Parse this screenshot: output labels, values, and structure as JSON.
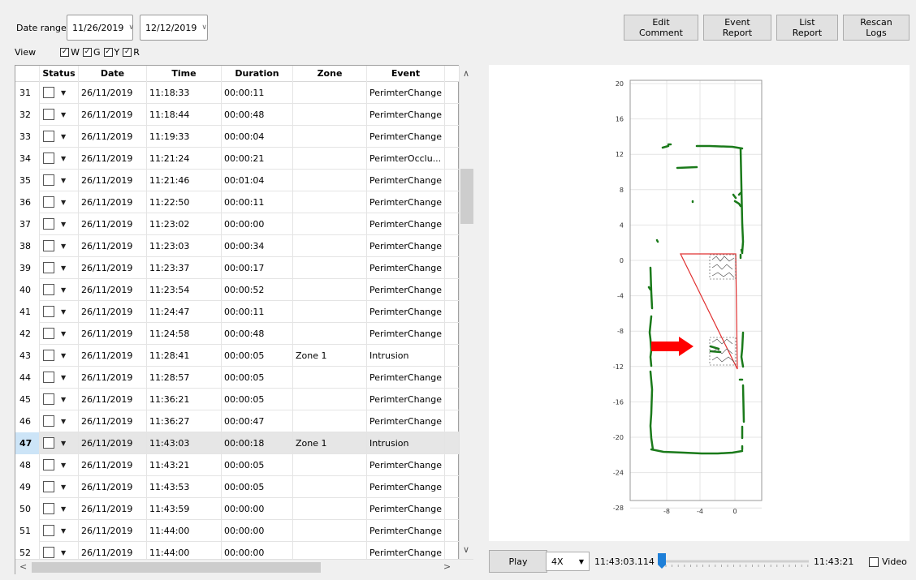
{
  "filters": {
    "date_range_label": "Date range",
    "start_date": "11/26/2019",
    "end_date": "12/12/2019",
    "view_label": "View",
    "view_options": [
      {
        "label": "W",
        "checked": true
      },
      {
        "label": "G",
        "checked": true
      },
      {
        "label": "Y",
        "checked": true
      },
      {
        "label": "R",
        "checked": true
      }
    ]
  },
  "toolbar": {
    "edit_comment": "Edit Comment",
    "event_report": "Event Report",
    "list_report": "List Report",
    "rescan_logs": "Rescan Logs"
  },
  "table": {
    "columns": [
      "Status",
      "Date",
      "Time",
      "Duration",
      "Zone",
      "Event"
    ],
    "selected_row": "47",
    "rows": [
      {
        "n": "31",
        "date": "26/11/2019",
        "time": "11:18:33",
        "duration": "00:00:11",
        "zone": "",
        "event": "PerimterChange"
      },
      {
        "n": "32",
        "date": "26/11/2019",
        "time": "11:18:44",
        "duration": "00:00:48",
        "zone": "",
        "event": "PerimterChange"
      },
      {
        "n": "33",
        "date": "26/11/2019",
        "time": "11:19:33",
        "duration": "00:00:04",
        "zone": "",
        "event": "PerimterChange"
      },
      {
        "n": "34",
        "date": "26/11/2019",
        "time": "11:21:24",
        "duration": "00:00:21",
        "zone": "",
        "event": "PerimterOcclu..."
      },
      {
        "n": "35",
        "date": "26/11/2019",
        "time": "11:21:46",
        "duration": "00:01:04",
        "zone": "",
        "event": "PerimterChange"
      },
      {
        "n": "36",
        "date": "26/11/2019",
        "time": "11:22:50",
        "duration": "00:00:11",
        "zone": "",
        "event": "PerimterChange"
      },
      {
        "n": "37",
        "date": "26/11/2019",
        "time": "11:23:02",
        "duration": "00:00:00",
        "zone": "",
        "event": "PerimterChange"
      },
      {
        "n": "38",
        "date": "26/11/2019",
        "time": "11:23:03",
        "duration": "00:00:34",
        "zone": "",
        "event": "PerimterChange"
      },
      {
        "n": "39",
        "date": "26/11/2019",
        "time": "11:23:37",
        "duration": "00:00:17",
        "zone": "",
        "event": "PerimterChange"
      },
      {
        "n": "40",
        "date": "26/11/2019",
        "time": "11:23:54",
        "duration": "00:00:52",
        "zone": "",
        "event": "PerimterChange"
      },
      {
        "n": "41",
        "date": "26/11/2019",
        "time": "11:24:47",
        "duration": "00:00:11",
        "zone": "",
        "event": "PerimterChange"
      },
      {
        "n": "42",
        "date": "26/11/2019",
        "time": "11:24:58",
        "duration": "00:00:48",
        "zone": "",
        "event": "PerimterChange"
      },
      {
        "n": "43",
        "date": "26/11/2019",
        "time": "11:28:41",
        "duration": "00:00:05",
        "zone": "Zone 1",
        "event": "Intrusion"
      },
      {
        "n": "44",
        "date": "26/11/2019",
        "time": "11:28:57",
        "duration": "00:00:05",
        "zone": "",
        "event": "PerimterChange"
      },
      {
        "n": "45",
        "date": "26/11/2019",
        "time": "11:36:21",
        "duration": "00:00:05",
        "zone": "",
        "event": "PerimterChange"
      },
      {
        "n": "46",
        "date": "26/11/2019",
        "time": "11:36:27",
        "duration": "00:00:47",
        "zone": "",
        "event": "PerimterChange"
      },
      {
        "n": "47",
        "date": "26/11/2019",
        "time": "11:43:03",
        "duration": "00:00:18",
        "zone": "Zone 1",
        "event": "Intrusion"
      },
      {
        "n": "48",
        "date": "26/11/2019",
        "time": "11:43:21",
        "duration": "00:00:05",
        "zone": "",
        "event": "PerimterChange"
      },
      {
        "n": "49",
        "date": "26/11/2019",
        "time": "11:43:53",
        "duration": "00:00:05",
        "zone": "",
        "event": "PerimterChange"
      },
      {
        "n": "50",
        "date": "26/11/2019",
        "time": "11:43:59",
        "duration": "00:00:00",
        "zone": "",
        "event": "PerimterChange"
      },
      {
        "n": "51",
        "date": "26/11/2019",
        "time": "11:44:00",
        "duration": "00:00:00",
        "zone": "",
        "event": "PerimterChange"
      },
      {
        "n": "52",
        "date": "26/11/2019",
        "time": "11:44:00",
        "duration": "00:00:00",
        "zone": "",
        "event": "PerimterChange"
      }
    ]
  },
  "plot": {
    "y_ticks": [
      "20",
      "16",
      "12",
      "8",
      "4",
      "0",
      "-4",
      "-8",
      "-12",
      "-16",
      "-20",
      "-24",
      "-28"
    ],
    "x_ticks": [
      "-8",
      "-4",
      "0"
    ],
    "colors": {
      "perimeter": "#1a7a1a",
      "zone": "#e03030",
      "arrow": "#ff0000"
    }
  },
  "playback": {
    "play_label": "Play",
    "speed": "4X",
    "start_time": "11:43:03.114",
    "end_time": "11:43:21",
    "position_fraction": 0.0,
    "video_label": "Video",
    "video_checked": false
  }
}
